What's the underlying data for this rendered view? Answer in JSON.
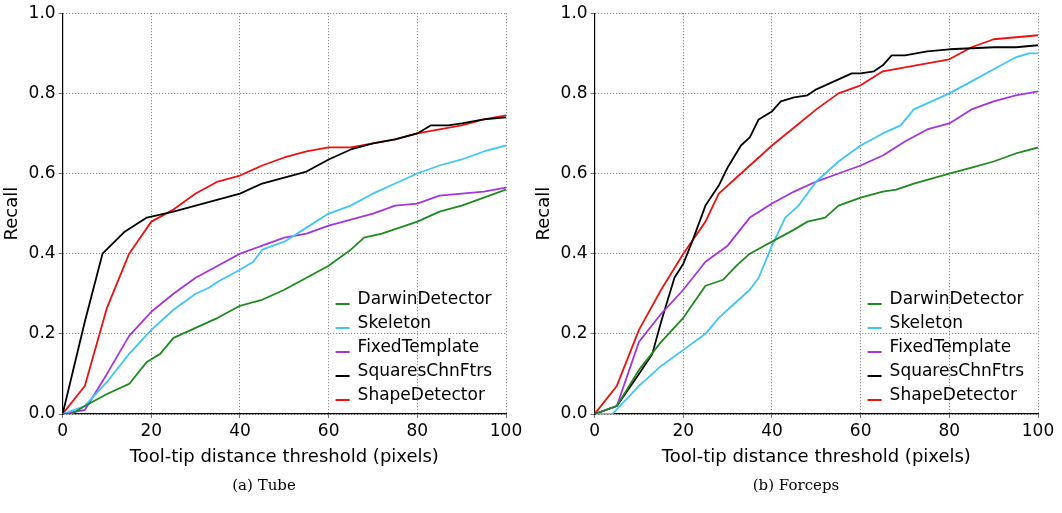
{
  "chart_data": [
    {
      "type": "line",
      "xlabel": "Tool-tip distance threshold (pixels)",
      "ylabel": "Recall",
      "annotations": [
        "(a) Tube"
      ],
      "xlim": [
        0,
        100
      ],
      "ylim": [
        0,
        1
      ],
      "xticks": [
        0,
        20,
        40,
        60,
        80,
        100
      ],
      "yticks": [
        {
          "value": 0,
          "label": "0.0"
        },
        {
          "value": 0.2,
          "label": "0.2"
        },
        {
          "value": 0.4,
          "label": "0.4"
        },
        {
          "value": 0.6,
          "label": "0.6"
        },
        {
          "value": 0.8,
          "label": "0.8"
        },
        {
          "value": 1,
          "label": "1.0"
        }
      ],
      "grid": true,
      "legend": "bottom right",
      "marker": "none",
      "line_style": "solid",
      "series": [
        {
          "name": "DarwinDetector",
          "color": "#1f8a1f",
          "x": [
            0,
            2,
            5,
            10,
            15,
            19,
            22,
            25,
            30,
            35,
            40,
            45,
            50,
            55,
            60,
            65,
            68,
            72,
            76,
            80,
            85,
            90,
            95,
            100
          ],
          "values": [
            0,
            0,
            0.02,
            0.05,
            0.075,
            0.13,
            0.15,
            0.19,
            0.215,
            0.24,
            0.27,
            0.285,
            0.31,
            0.34,
            0.37,
            0.41,
            0.44,
            0.45,
            0.465,
            0.48,
            0.505,
            0.52,
            0.54,
            0.56
          ]
        },
        {
          "name": "Skeleton",
          "color": "#3fc6f5",
          "x": [
            0,
            5,
            10,
            15,
            20,
            25,
            30,
            33,
            35,
            40,
            43,
            45,
            50,
            55,
            60,
            65,
            70,
            75,
            80,
            85,
            90,
            95,
            100
          ],
          "values": [
            0,
            0.02,
            0.08,
            0.15,
            0.21,
            0.26,
            0.3,
            0.315,
            0.33,
            0.36,
            0.38,
            0.41,
            0.43,
            0.465,
            0.5,
            0.52,
            0.55,
            0.575,
            0.6,
            0.62,
            0.635,
            0.655,
            0.67
          ]
        },
        {
          "name": "FixedTemplate",
          "color": "#a335e0",
          "x": [
            0,
            5,
            10,
            15,
            20,
            25,
            30,
            35,
            40,
            45,
            50,
            55,
            60,
            65,
            70,
            75,
            80,
            85,
            90,
            95,
            100
          ],
          "values": [
            0,
            0.01,
            0.1,
            0.195,
            0.255,
            0.3,
            0.34,
            0.37,
            0.4,
            0.42,
            0.44,
            0.45,
            0.47,
            0.485,
            0.5,
            0.52,
            0.525,
            0.545,
            0.55,
            0.555,
            0.565
          ]
        },
        {
          "name": "SquaresChnFtrs",
          "color": "#000000",
          "x": [
            0,
            5,
            9,
            14,
            19,
            25,
            30,
            35,
            40,
            45,
            50,
            55,
            60,
            65,
            70,
            75,
            80,
            83,
            87,
            90,
            95,
            100
          ],
          "values": [
            0,
            0.23,
            0.4,
            0.455,
            0.49,
            0.505,
            0.52,
            0.535,
            0.55,
            0.575,
            0.59,
            0.605,
            0.635,
            0.66,
            0.675,
            0.685,
            0.7,
            0.72,
            0.72,
            0.725,
            0.735,
            0.74
          ]
        },
        {
          "name": "ShapeDetector",
          "color": "#ee1111",
          "x": [
            0,
            5,
            10,
            15,
            20,
            25,
            30,
            35,
            40,
            45,
            50,
            55,
            60,
            65,
            70,
            75,
            80,
            85,
            90,
            95,
            100
          ],
          "values": [
            0,
            0.07,
            0.265,
            0.4,
            0.48,
            0.51,
            0.55,
            0.58,
            0.595,
            0.62,
            0.64,
            0.655,
            0.665,
            0.665,
            0.675,
            0.685,
            0.7,
            0.71,
            0.72,
            0.735,
            0.745
          ]
        }
      ]
    },
    {
      "type": "line",
      "xlabel": "Tool-tip distance threshold (pixels)",
      "ylabel": "Recall",
      "annotations": [
        "(b) Forceps"
      ],
      "xlim": [
        0,
        100
      ],
      "ylim": [
        0,
        1
      ],
      "xticks": [
        0,
        20,
        40,
        60,
        80,
        100
      ],
      "yticks": [
        {
          "value": 0,
          "label": "0.0"
        },
        {
          "value": 0.2,
          "label": "0.2"
        },
        {
          "value": 0.4,
          "label": "0.4"
        },
        {
          "value": 0.6,
          "label": "0.6"
        },
        {
          "value": 0.8,
          "label": "0.8"
        },
        {
          "value": 1,
          "label": "1.0"
        }
      ],
      "grid": true,
      "legend": "bottom right",
      "marker": "none",
      "line_style": "solid",
      "series": [
        {
          "name": "DarwinDetector",
          "color": "#1f8a1f",
          "x": [
            0,
            5,
            10,
            15,
            20,
            25,
            29,
            32,
            35,
            40,
            45,
            48,
            52,
            55,
            60,
            65,
            68,
            72,
            80,
            85,
            90,
            95,
            100
          ],
          "values": [
            0,
            0.02,
            0.11,
            0.18,
            0.24,
            0.32,
            0.335,
            0.37,
            0.4,
            0.43,
            0.46,
            0.48,
            0.49,
            0.52,
            0.54,
            0.555,
            0.56,
            0.575,
            0.6,
            0.615,
            0.63,
            0.65,
            0.665
          ]
        },
        {
          "name": "Skeleton",
          "color": "#3fc6f5",
          "x": [
            0,
            4,
            10,
            15,
            20,
            25,
            28,
            32,
            35,
            37,
            40,
            43,
            46,
            50,
            55,
            60,
            65,
            69,
            72,
            76,
            80,
            85,
            90,
            95,
            98,
            100
          ],
          "values": [
            0,
            0,
            0.07,
            0.12,
            0.16,
            0.2,
            0.24,
            0.28,
            0.31,
            0.34,
            0.42,
            0.49,
            0.52,
            0.58,
            0.63,
            0.67,
            0.7,
            0.72,
            0.76,
            0.78,
            0.8,
            0.83,
            0.86,
            0.89,
            0.9,
            0.9
          ]
        },
        {
          "name": "FixedTemplate",
          "color": "#a335e0",
          "x": [
            0,
            5,
            10,
            15,
            20,
            25,
            30,
            35,
            40,
            45,
            50,
            55,
            60,
            65,
            70,
            75,
            80,
            85,
            90,
            95,
            100
          ],
          "values": [
            0,
            0.02,
            0.18,
            0.25,
            0.31,
            0.38,
            0.42,
            0.49,
            0.525,
            0.555,
            0.58,
            0.6,
            0.62,
            0.645,
            0.68,
            0.71,
            0.725,
            0.76,
            0.78,
            0.795,
            0.805
          ]
        },
        {
          "name": "SquaresChnFtrs",
          "color": "#000000",
          "x": [
            0,
            5,
            10,
            13,
            15,
            18,
            20,
            22,
            25,
            28,
            30,
            33,
            35,
            37,
            40,
            42,
            45,
            48,
            50,
            52,
            55,
            58,
            60,
            63,
            65,
            67,
            70,
            75,
            80,
            90,
            95,
            100
          ],
          "values": [
            0,
            0.02,
            0.1,
            0.15,
            0.23,
            0.34,
            0.375,
            0.43,
            0.52,
            0.57,
            0.615,
            0.67,
            0.69,
            0.735,
            0.755,
            0.78,
            0.79,
            0.795,
            0.81,
            0.82,
            0.835,
            0.85,
            0.85,
            0.855,
            0.87,
            0.895,
            0.895,
            0.905,
            0.91,
            0.915,
            0.915,
            0.92
          ]
        },
        {
          "name": "ShapeDetector",
          "color": "#ee1111",
          "x": [
            0,
            5,
            10,
            15,
            20,
            25,
            28,
            32,
            35,
            40,
            45,
            50,
            55,
            60,
            65,
            70,
            75,
            80,
            85,
            90,
            95,
            100
          ],
          "values": [
            0,
            0.07,
            0.21,
            0.31,
            0.4,
            0.48,
            0.55,
            0.59,
            0.62,
            0.67,
            0.715,
            0.76,
            0.8,
            0.82,
            0.855,
            0.865,
            0.875,
            0.885,
            0.915,
            0.935,
            0.94,
            0.945
          ]
        }
      ]
    }
  ]
}
